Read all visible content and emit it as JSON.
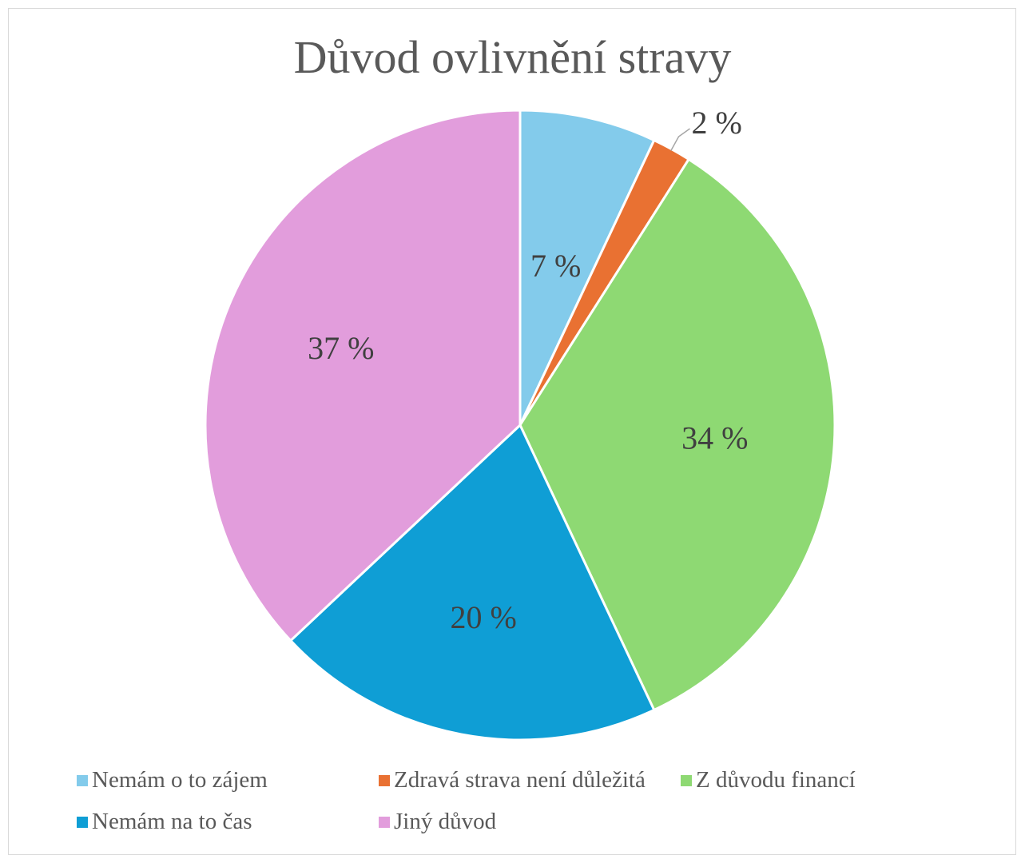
{
  "chart_data": {
    "type": "pie",
    "title": "Důvod ovlivnění stravy",
    "categories": [
      "Nemám o to zájem",
      "Zdravá strava není důležitá",
      "Z důvodu financí",
      "Nemám na to čas",
      "Jiný důvod"
    ],
    "values": [
      7,
      2,
      34,
      20,
      37
    ],
    "labels": [
      "7 %",
      "2 %",
      "34 %",
      "20 %",
      "37 %"
    ],
    "colors": [
      "#83cbeb",
      "#e97132",
      "#8ed973",
      "#0f9ed5",
      "#e29ddc"
    ],
    "start_angle_deg": 0,
    "direction": "clockwise",
    "legend_position": "bottom"
  }
}
